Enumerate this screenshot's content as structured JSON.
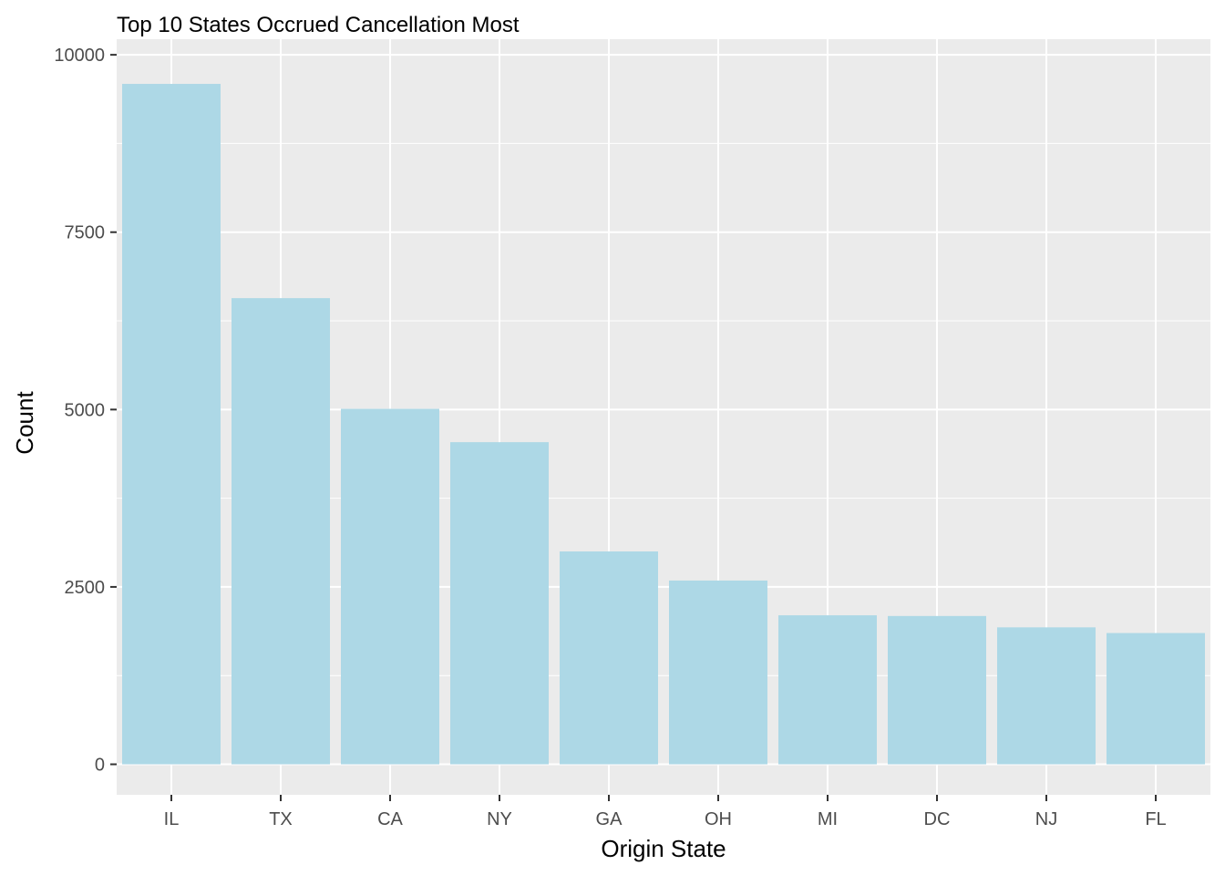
{
  "chart_data": {
    "type": "bar",
    "title": "Top 10 States Occrued Cancellation Most",
    "xlabel": "Origin State",
    "ylabel": "Count",
    "categories": [
      "IL",
      "TX",
      "CA",
      "NY",
      "GA",
      "OH",
      "MI",
      "DC",
      "NJ",
      "FL"
    ],
    "values": [
      9590,
      6570,
      5010,
      4540,
      3000,
      2590,
      2100,
      2090,
      1930,
      1850
    ],
    "yticks": [
      0,
      2500,
      5000,
      7500,
      10000
    ],
    "ytick_labels": [
      "0",
      "2500",
      "5000",
      "7500",
      "10000"
    ],
    "ylim": [
      -430,
      10220
    ],
    "grid": true,
    "legend": "none",
    "colors": {
      "bar": "#add8e6",
      "panel": "#ebebeb",
      "grid": "#ffffff",
      "tick": "#333333"
    }
  }
}
